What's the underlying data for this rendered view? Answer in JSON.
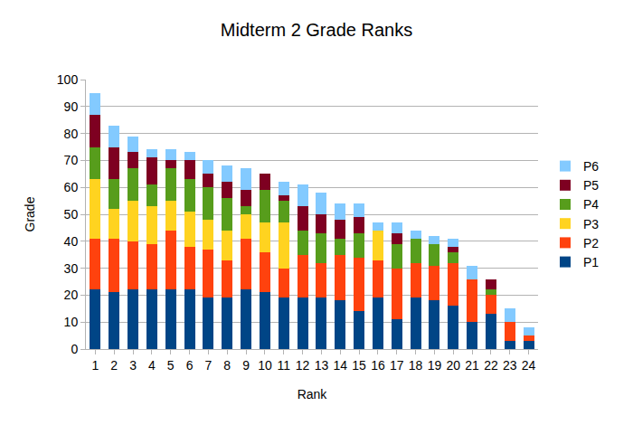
{
  "chart_data": {
    "type": "bar",
    "title": "Midterm 2 Grade Ranks",
    "x_label": "Rank",
    "y_label": "Grade",
    "stacked": true,
    "grid": true,
    "legend": "right",
    "categories": [
      "1",
      "2",
      "3",
      "4",
      "5",
      "6",
      "7",
      "8",
      "9",
      "10",
      "11",
      "12",
      "13",
      "14",
      "15",
      "16",
      "17",
      "18",
      "19",
      "20",
      "21",
      "22",
      "23",
      "24"
    ],
    "series": [
      {
        "name": "P1",
        "color": "#004586",
        "values": [
          22,
          21,
          22,
          22,
          22,
          22,
          19,
          19,
          22,
          21,
          19,
          19,
          19,
          18,
          14,
          19,
          11,
          19,
          18,
          16,
          10,
          13,
          3,
          3
        ]
      },
      {
        "name": "P2",
        "color": "#ff420e",
        "values": [
          19,
          20,
          18,
          17,
          22,
          16,
          18,
          14,
          19,
          15,
          11,
          16,
          13,
          17,
          20,
          14,
          19,
          13,
          13,
          16,
          16,
          7,
          7,
          2
        ]
      },
      {
        "name": "P3",
        "color": "#ffd320",
        "values": [
          22,
          11,
          15,
          14,
          11,
          13,
          11,
          11,
          9,
          11,
          17,
          0,
          0,
          0,
          0,
          11,
          0,
          0,
          0,
          0,
          0,
          0,
          0,
          0
        ]
      },
      {
        "name": "P4",
        "color": "#579d1c",
        "values": [
          12,
          11,
          12,
          8,
          12,
          12,
          12,
          12,
          3,
          12,
          8,
          9,
          11,
          6,
          9,
          0,
          9,
          9,
          8,
          4,
          0,
          2,
          0,
          0
        ]
      },
      {
        "name": "P5",
        "color": "#7e0021",
        "values": [
          12,
          12,
          6,
          10,
          3,
          7,
          5,
          6,
          6,
          6,
          2,
          9,
          7,
          7,
          6,
          0,
          4,
          0,
          0,
          2,
          0,
          4,
          0,
          0
        ]
      },
      {
        "name": "P6",
        "color": "#83caff",
        "values": [
          8,
          8,
          6,
          3,
          4,
          3,
          5,
          6,
          8,
          0,
          5,
          8,
          8,
          6,
          5,
          3,
          4,
          3,
          3,
          3,
          5,
          0,
          5,
          3
        ]
      }
    ],
    "ylim": [
      0,
      100
    ],
    "yticks": [
      0,
      10,
      20,
      30,
      40,
      50,
      60,
      70,
      80,
      90,
      100
    ]
  }
}
